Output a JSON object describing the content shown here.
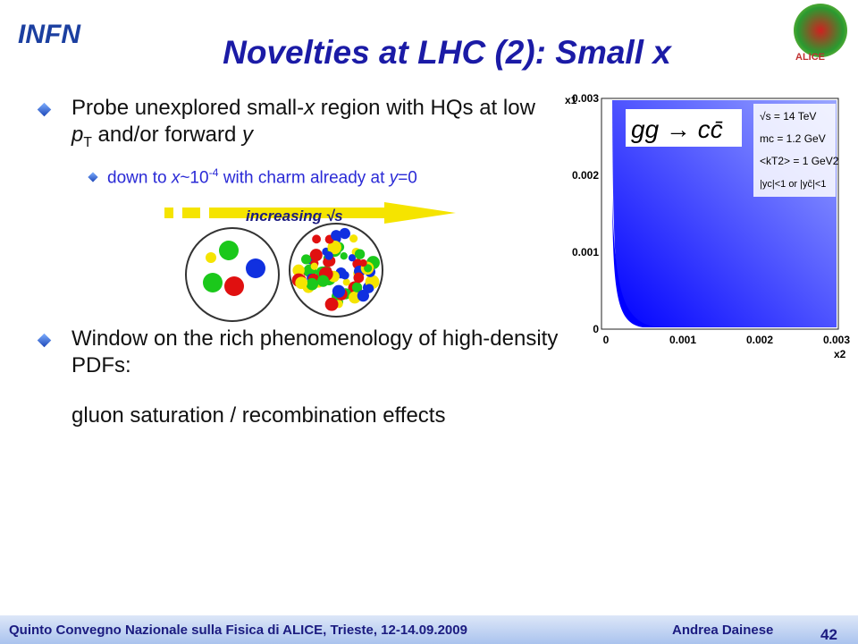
{
  "header": {
    "logo": "INFN",
    "title": "Novelties at LHC (2): Small x",
    "badge": "ALICE"
  },
  "bullets": [
    {
      "parts": [
        "Probe unexplored small-",
        "x",
        " region with HQs at low ",
        "p",
        "T",
        " and/or forward ",
        "y"
      ]
    },
    {
      "parts": [
        "down to ",
        "x",
        "~10",
        "-4",
        " with charm already at ",
        "y",
        "=0"
      ]
    },
    {
      "parts": [
        "Window on the rich phenomenology of high-density PDFs:"
      ]
    },
    {
      "parts": [
        "gluon saturation / recombination effects"
      ]
    }
  ],
  "arrow": {
    "parts": [
      "increasing ",
      "√s"
    ]
  },
  "plot": {
    "y_label": "x1",
    "x_label": "x2",
    "xticks": [
      "0",
      "0.001",
      "0.002",
      "0.003"
    ],
    "yticks": [
      "0",
      "0.001",
      "0.002",
      "0.003"
    ],
    "process": "gg → cc̄",
    "legend": [
      "√s = 14 TeV",
      "mc = 1.2 GeV",
      "<kT2> = 1 GeV2",
      "|yc|<1 or |yc̄|<1"
    ]
  },
  "footer": {
    "conference": "Quinto Convegno Nazionale sulla Fisica di ALICE, Trieste, 12-14.09.2009",
    "author": "Andrea Dainese",
    "page": "42"
  }
}
